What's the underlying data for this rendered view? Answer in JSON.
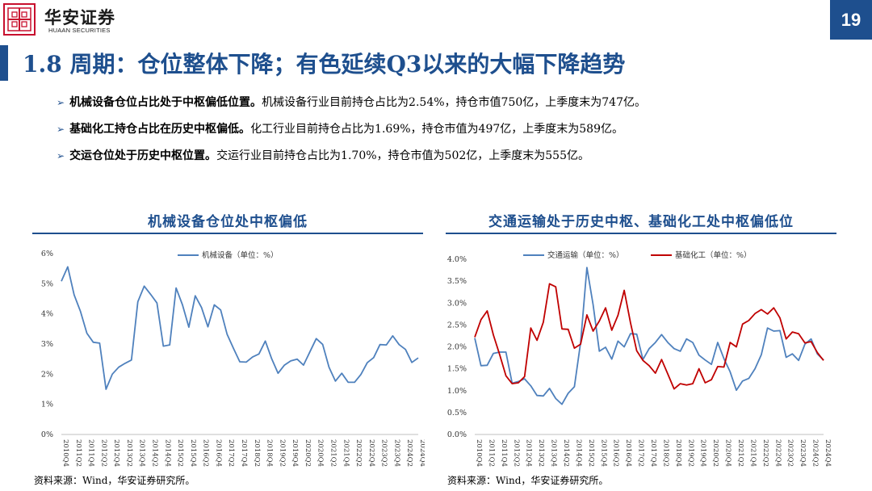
{
  "header": {
    "logo_cn": "华安证券",
    "logo_en": "HUAAN SECURITIES",
    "page_number": "19",
    "title": "1.8 周期：仓位整体下降；有色延续Q3以来的大幅下降趋势"
  },
  "bullets": [
    {
      "bold": "机械设备仓位占比处于中枢偏低位置。",
      "text": "机械设备行业目前持仓占比为2.54%，持仓市值750亿，上季度末为747亿。"
    },
    {
      "bold": "基础化工持仓占比在历史中枢偏低。",
      "text": "化工行业目前持仓占比为1.69%，持仓市值为497亿，上季度末为589亿。"
    },
    {
      "bold": "交运仓位处于历史中枢位置。",
      "text": "交运行业目前持仓占比为1.70%，持仓市值为502亿，上季度末为555亿。"
    }
  ],
  "chart_data": [
    {
      "type": "line",
      "title": "机械设备仓位处中枢偏低",
      "ylim": [
        0,
        6
      ],
      "y_ticks": [
        "0%",
        "1%",
        "2%",
        "3%",
        "4%",
        "5%",
        "6%"
      ],
      "x_ticks": [
        "2010Q4",
        "2011Q2",
        "2011Q4",
        "2012Q2",
        "2012Q4",
        "2013Q2",
        "2013Q4",
        "2014Q2",
        "2014Q4",
        "2015Q2",
        "2015Q4",
        "2016Q2",
        "2016Q4",
        "2017Q2",
        "2017Q4",
        "2018Q2",
        "2018Q4",
        "2019Q2",
        "2019Q4",
        "2020Q2",
        "2020Q4",
        "2021Q2",
        "2021Q4",
        "2022Q2",
        "2022Q4",
        "2023Q2",
        "2023Q4",
        "2024Q2",
        "2024Q4"
      ],
      "legend_position": "top-center",
      "series": [
        {
          "name": "机械设备（单位：%）",
          "color": "#4f81bd",
          "values": [
            5.08,
            5.56,
            4.63,
            4.08,
            3.36,
            3.06,
            3.03,
            1.5,
            2.0,
            2.23,
            2.36,
            2.47,
            4.4,
            4.92,
            4.65,
            4.36,
            2.93,
            2.97,
            4.86,
            4.3,
            3.56,
            4.6,
            4.21,
            3.57,
            4.3,
            4.13,
            3.33,
            2.86,
            2.41,
            2.4,
            2.57,
            2.67,
            3.1,
            2.51,
            2.03,
            2.3,
            2.44,
            2.5,
            2.3,
            2.74,
            3.18,
            2.99,
            2.23,
            1.77,
            2.03,
            1.73,
            1.73,
            1.99,
            2.38,
            2.55,
            2.98,
            2.97,
            3.27,
            2.98,
            2.82,
            2.39,
            2.54
          ]
        }
      ]
    },
    {
      "type": "line",
      "title": "交通运输处于历史中枢、基础化工处中枢偏低位",
      "ylim": [
        0,
        4
      ],
      "y_ticks": [
        "0.0%",
        "0.5%",
        "1.0%",
        "1.5%",
        "2.0%",
        "2.5%",
        "3.0%",
        "3.5%",
        "4.0%"
      ],
      "x_ticks": [
        "2010Q4",
        "2011Q2",
        "2011Q4",
        "2012Q2",
        "2012Q4",
        "2013Q2",
        "2013Q4",
        "2014Q2",
        "2014Q4",
        "2015Q2",
        "2015Q4",
        "2016Q2",
        "2016Q4",
        "2017Q2",
        "2017Q4",
        "2018Q2",
        "2018Q4",
        "2019Q2",
        "2019Q4",
        "2020Q2",
        "2020Q4",
        "2021Q2",
        "2021Q4",
        "2022Q2",
        "2022Q4",
        "2023Q2",
        "2023Q4",
        "2024Q2",
        "2024Q4"
      ],
      "legend_position": "top-center",
      "series": [
        {
          "name": "交通运输（单位：%）",
          "color": "#4f81bd",
          "values": [
            2.2,
            1.57,
            1.58,
            1.85,
            1.88,
            1.88,
            1.17,
            1.21,
            1.27,
            1.11,
            0.89,
            0.88,
            1.05,
            0.82,
            0.69,
            0.94,
            1.09,
            2.1,
            3.81,
            2.96,
            1.9,
            1.99,
            1.72,
            2.13,
            2.0,
            2.3,
            2.29,
            1.71,
            1.96,
            2.1,
            2.28,
            2.1,
            1.96,
            1.9,
            2.18,
            2.1,
            1.81,
            1.7,
            1.6,
            2.1,
            1.73,
            1.43,
            1.01,
            1.22,
            1.28,
            1.5,
            1.82,
            2.43,
            2.36,
            2.37,
            1.76,
            1.84,
            1.69,
            2.06,
            2.18,
            1.84,
            1.7
          ]
        },
        {
          "name": "基础化工（单位：%）",
          "color": "#c00000",
          "values": [
            2.22,
            2.62,
            2.82,
            2.27,
            1.82,
            1.34,
            1.16,
            1.18,
            1.32,
            2.43,
            2.15,
            2.56,
            3.44,
            3.37,
            2.41,
            2.4,
            1.97,
            2.06,
            2.73,
            2.36,
            2.59,
            2.89,
            2.38,
            2.72,
            3.29,
            2.55,
            1.91,
            1.69,
            1.57,
            1.4,
            1.71,
            1.38,
            1.04,
            1.16,
            1.13,
            1.16,
            1.5,
            1.18,
            1.25,
            1.55,
            1.54,
            2.1,
            2.0,
            2.52,
            2.6,
            2.76,
            2.85,
            2.75,
            2.89,
            2.66,
            2.18,
            2.34,
            2.3,
            2.09,
            2.12,
            1.87,
            1.69
          ]
        }
      ]
    }
  ],
  "sources": [
    "资料来源：Wind，华安证券研究所。",
    "资料来源：Wind，华安证券研究所。"
  ]
}
